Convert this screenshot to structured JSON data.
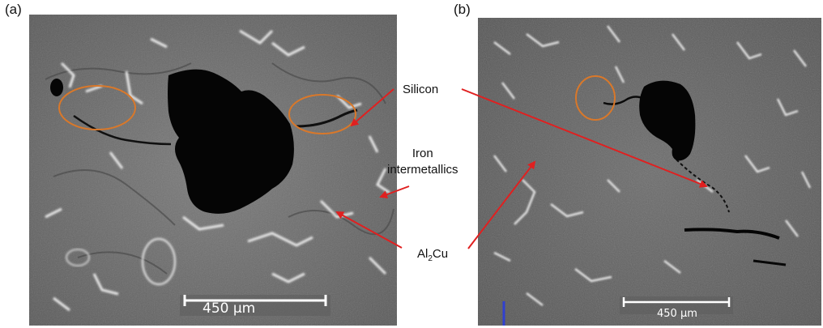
{
  "panels": {
    "a": {
      "label": "(a)",
      "scale_bar": "450 µm"
    },
    "b": {
      "label": "(b)",
      "scale_bar": "450 µm"
    }
  },
  "annotations": {
    "silicon": "Silicon",
    "iron_line1": "Iron",
    "iron_line2": "intermetallics",
    "al2cu_prefix": "Al",
    "al2cu_sub": "2",
    "al2cu_suffix": "Cu"
  },
  "colors": {
    "arrow": "#e02020",
    "circle": "#d9782a",
    "matrix": "#6f6f6f",
    "pore": "#050505",
    "phase": "#e8e8e8"
  }
}
